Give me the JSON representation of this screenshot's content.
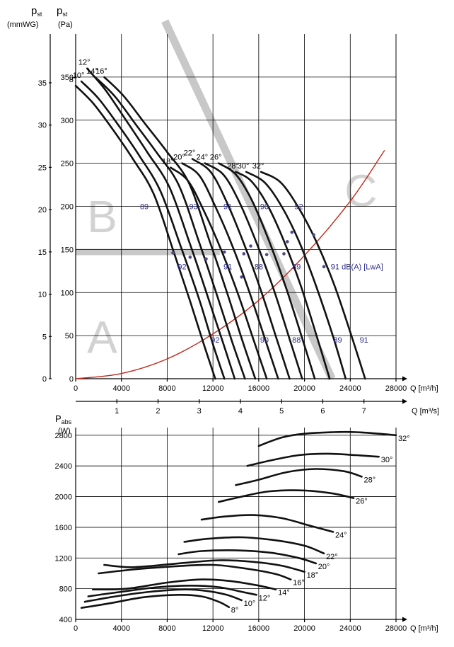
{
  "chart_data": [
    {
      "type": "line",
      "ylabel_1": "p",
      "ylabel_1_sub": "st",
      "ylabel_1_unit": "(mmWG)",
      "ylabel_2": "p",
      "ylabel_2_sub": "st",
      "ylabel_2_unit": "(Pa)",
      "xlabel_1": "Q [m³/h]",
      "xlabel_2": "Q [m³/s]",
      "xlim": [
        0,
        28000
      ],
      "ylim_pa": [
        0,
        400
      ],
      "x_ticks_m3h": [
        "0",
        "4000",
        "8000",
        "12000",
        "16000",
        "20000",
        "24000",
        "28000"
      ],
      "x_ticks_m3s": [
        "1",
        "2",
        "3",
        "4",
        "5",
        "6",
        "7"
      ],
      "y_ticks_pa": [
        "0",
        "50",
        "100",
        "150",
        "200",
        "250",
        "300",
        "350"
      ],
      "y_ticks_mmwg": [
        "0",
        "5",
        "10",
        "15",
        "20",
        "25",
        "30",
        "35"
      ],
      "zones": [
        "A",
        "B",
        "C"
      ],
      "series": [
        {
          "name": "8°",
          "x": [
            0,
            1500,
            3200,
            5000,
            6800,
            8500,
            10000,
            11200,
            12200
          ],
          "y": [
            340,
            320,
            290,
            255,
            215,
            150,
            90,
            40,
            0
          ]
        },
        {
          "name": "10°",
          "x": [
            500,
            2000,
            3800,
            5600,
            7400,
            9200,
            10800,
            12000,
            13000
          ],
          "y": [
            345,
            325,
            293,
            258,
            218,
            153,
            92,
            40,
            0
          ]
        },
        {
          "name": "12°",
          "x": [
            1000,
            2600,
            4400,
            6300,
            8200,
            10000,
            11600,
            12900,
            13900
          ],
          "y": [
            360,
            335,
            300,
            262,
            222,
            156,
            93,
            41,
            0
          ]
        },
        {
          "name": "14°",
          "x": [
            1700,
            3400,
            5200,
            7100,
            9000,
            10800,
            12400,
            13700,
            14800
          ],
          "y": [
            350,
            328,
            296,
            262,
            225,
            158,
            95,
            42,
            0
          ]
        },
        {
          "name": "16°",
          "x": [
            2500,
            4200,
            6000,
            8000,
            9900,
            11700,
            13300,
            14600,
            15700
          ],
          "y": [
            350,
            328,
            297,
            263,
            227,
            160,
            97,
            43,
            0
          ]
        },
        {
          "name": "18°",
          "x": [
            8300,
            9800,
            11200,
            12700,
            14200,
            15600,
            16700
          ],
          "y": [
            245,
            230,
            195,
            150,
            98,
            43,
            0
          ]
        },
        {
          "name": "20°",
          "x": [
            9300,
            10800,
            12200,
            13700,
            15200,
            16600,
            17700
          ],
          "y": [
            250,
            236,
            200,
            154,
            100,
            44,
            0
          ]
        },
        {
          "name": "22°",
          "x": [
            10200,
            11800,
            13200,
            14700,
            16200,
            17600,
            18700
          ],
          "y": [
            255,
            240,
            205,
            157,
            102,
            45,
            0
          ]
        },
        {
          "name": "24°",
          "x": [
            11300,
            12900,
            14300,
            15800,
            17300,
            18700,
            19800
          ],
          "y": [
            250,
            237,
            205,
            158,
            104,
            46,
            0
          ]
        },
        {
          "name": "26°",
          "x": [
            12500,
            14000,
            15400,
            16900,
            18400,
            19800,
            20900
          ],
          "y": [
            250,
            237,
            207,
            160,
            105,
            47,
            0
          ]
        },
        {
          "name": "28°",
          "x": [
            14000,
            15300,
            16700,
            18200,
            19700,
            21100,
            22200
          ],
          "y": [
            240,
            230,
            203,
            160,
            107,
            48,
            0
          ]
        },
        {
          "name": "30°",
          "x": [
            14900,
            16500,
            18000,
            19500,
            21000,
            22500,
            23600
          ],
          "y": [
            240,
            228,
            200,
            160,
            108,
            49,
            0
          ]
        },
        {
          "name": "32°",
          "x": [
            16200,
            17900,
            19500,
            21000,
            22600,
            24100,
            25300
          ],
          "y": [
            240,
            228,
            198,
            160,
            109,
            50,
            0
          ]
        }
      ],
      "system_curve": {
        "x": [
          0,
          4000,
          8000,
          12000,
          16000,
          20000,
          24000,
          27000
        ],
        "y": [
          0,
          6,
          23,
          52,
          91,
          143,
          206,
          265
        ]
      },
      "dba_labels": [
        {
          "text": "89",
          "x": 6000,
          "y": 200
        },
        {
          "text": "93",
          "x": 10300,
          "y": 200
        },
        {
          "text": "91",
          "x": 13300,
          "y": 200
        },
        {
          "text": "90",
          "x": 16500,
          "y": 200
        },
        {
          "text": "92",
          "x": 19500,
          "y": 200
        },
        {
          "text": "92",
          "x": 9300,
          "y": 130
        },
        {
          "text": "91",
          "x": 13300,
          "y": 130
        },
        {
          "text": "88",
          "x": 16000,
          "y": 130
        },
        {
          "text": "89",
          "x": 19300,
          "y": 130
        },
        {
          "text": "91 dB(A) [LwA]",
          "x": 22300,
          "y": 130
        },
        {
          "text": "92",
          "x": 12200,
          "y": 45
        },
        {
          "text": "90",
          "x": 16500,
          "y": 45
        },
        {
          "text": "88",
          "x": 19300,
          "y": 45
        },
        {
          "text": "89",
          "x": 22900,
          "y": 45
        },
        {
          "text": "91",
          "x": 25200,
          "y": 45
        }
      ],
      "markers": [
        {
          "x": 8500,
          "y": 146
        },
        {
          "x": 10000,
          "y": 141
        },
        {
          "x": 11400,
          "y": 139
        },
        {
          "x": 13000,
          "y": 147
        },
        {
          "x": 14700,
          "y": 145
        },
        {
          "x": 15300,
          "y": 154
        },
        {
          "x": 16700,
          "y": 144
        },
        {
          "x": 18200,
          "y": 145
        },
        {
          "x": 18500,
          "y": 159
        },
        {
          "x": 18900,
          "y": 170
        },
        {
          "x": 20800,
          "y": 167
        },
        {
          "x": 21700,
          "y": 130
        },
        {
          "x": 14500,
          "y": 118
        }
      ]
    },
    {
      "type": "line",
      "ylabel": "P",
      "ylabel_sub": "abs",
      "ylabel_unit": "(W)",
      "xlabel": "Q [m³/h]",
      "xlim": [
        0,
        28000
      ],
      "ylim": [
        400,
        2800
      ],
      "x_ticks": [
        "0",
        "4000",
        "8000",
        "12000",
        "16000",
        "20000",
        "24000",
        "28000"
      ],
      "y_ticks": [
        "400",
        "800",
        "1200",
        "1600",
        "2000",
        "2400",
        "2800"
      ],
      "series": [
        {
          "name": "8°",
          "x": [
            500,
            3000,
            6000,
            9000,
            11000,
            12500,
            13400
          ],
          "y": [
            550,
            610,
            690,
            720,
            700,
            630,
            560
          ]
        },
        {
          "name": "10°",
          "x": [
            800,
            3500,
            6500,
            9500,
            11500,
            13200,
            14500
          ],
          "y": [
            630,
            700,
            760,
            790,
            770,
            720,
            650
          ]
        },
        {
          "name": "12°",
          "x": [
            1100,
            4000,
            7200,
            10000,
            12500,
            14500,
            15800
          ],
          "y": [
            700,
            760,
            820,
            840,
            820,
            760,
            720
          ]
        },
        {
          "name": "14°",
          "x": [
            1500,
            4500,
            8000,
            11000,
            13500,
            16000,
            17500
          ],
          "y": [
            790,
            800,
            880,
            920,
            900,
            840,
            790
          ]
        },
        {
          "name": "16°",
          "x": [
            2000,
            5000,
            8500,
            12000,
            15000,
            17500,
            18800
          ],
          "y": [
            1000,
            1050,
            1090,
            1110,
            1060,
            990,
            920
          ]
        },
        {
          "name": "18°",
          "x": [
            2500,
            5000,
            9000,
            12500,
            15500,
            18000,
            20000
          ],
          "y": [
            1110,
            1080,
            1130,
            1170,
            1150,
            1100,
            1020
          ]
        },
        {
          "name": "20°",
          "x": [
            9000,
            11000,
            14000,
            17000,
            19500,
            21000
          ],
          "y": [
            1250,
            1290,
            1300,
            1270,
            1200,
            1130
          ]
        },
        {
          "name": "22°",
          "x": [
            9500,
            11500,
            14500,
            17500,
            20000,
            21700
          ],
          "y": [
            1410,
            1450,
            1470,
            1430,
            1360,
            1260
          ]
        },
        {
          "name": "24°",
          "x": [
            11000,
            13000,
            15500,
            18000,
            20500,
            22500
          ],
          "y": [
            1700,
            1740,
            1760,
            1720,
            1620,
            1540
          ]
        },
        {
          "name": "26°",
          "x": [
            12500,
            14500,
            17000,
            20000,
            22500,
            24300
          ],
          "y": [
            1930,
            2000,
            2070,
            2080,
            2040,
            1980
          ]
        },
        {
          "name": "28°",
          "x": [
            14000,
            16000,
            18500,
            21000,
            23500,
            25000
          ],
          "y": [
            2150,
            2220,
            2320,
            2360,
            2330,
            2260
          ]
        },
        {
          "name": "30°",
          "x": [
            15000,
            17000,
            19500,
            22000,
            24500,
            26500
          ],
          "y": [
            2400,
            2470,
            2540,
            2560,
            2540,
            2520
          ]
        },
        {
          "name": "32°",
          "x": [
            16000,
            18000,
            20000,
            22500,
            24500,
            26500,
            28000
          ],
          "y": [
            2660,
            2770,
            2820,
            2840,
            2840,
            2820,
            2800
          ]
        }
      ]
    }
  ]
}
